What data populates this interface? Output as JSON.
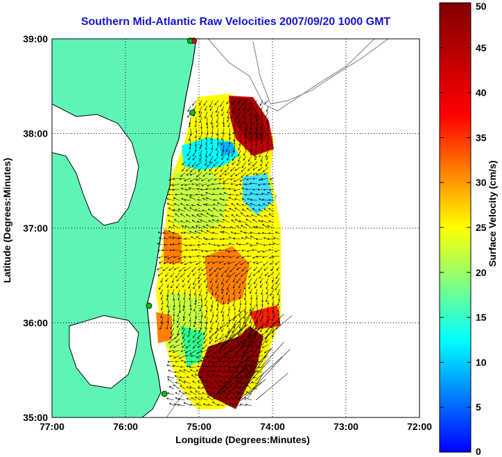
{
  "title": "Southern Mid-Atlantic Raw Velocities 2007/09/20 1000 GMT",
  "xlabel": "Longitude (Degrees:Minutes)",
  "ylabel": "Latitude (Degrees:Minutes)",
  "colorbar_label": "Surface Velocity (cm/s)",
  "chart_data": {
    "type": "map",
    "x_ticks": [
      "77:00",
      "76:00",
      "75:00",
      "74:00",
      "73:00",
      "72:00"
    ],
    "y_ticks": [
      "39:00",
      "38:00",
      "37:00",
      "36:00",
      "35:00"
    ],
    "xlim": [
      -77,
      -72
    ],
    "ylim": [
      35,
      39
    ],
    "grid": true,
    "colorbar": {
      "min": 0,
      "max": 50,
      "ticks": [
        "0",
        "5",
        "10",
        "15",
        "20",
        "25",
        "30",
        "35",
        "40",
        "45",
        "50"
      ],
      "placement": "right"
    },
    "land_color": "#5ef5b4",
    "stations": [
      {
        "lon": -75.07,
        "lat": 38.98,
        "color": "#ff0000"
      },
      {
        "lon": -75.12,
        "lat": 38.98,
        "color": "#00c000"
      },
      {
        "lon": -75.09,
        "lat": 38.22,
        "color": "#00c000"
      },
      {
        "lon": -75.68,
        "lat": 36.18,
        "color": "#00c000"
      },
      {
        "lon": -75.47,
        "lat": 35.25,
        "color": "#00c000"
      }
    ]
  }
}
